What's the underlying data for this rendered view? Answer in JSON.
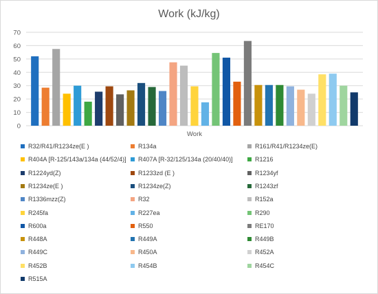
{
  "chart_data": {
    "type": "bar",
    "title": "Work (kJ/kg)",
    "xlabel": "Work",
    "ylabel": "",
    "ylim": [
      0,
      70
    ],
    "yticks": [
      0,
      10,
      20,
      30,
      40,
      50,
      60,
      70
    ],
    "categories": [
      "Work"
    ],
    "legend_position": "bottom",
    "grid": true,
    "series": [
      {
        "name": "R32/R41/R1234ze(E )",
        "value": 52,
        "color": "#1f6fbf"
      },
      {
        "name": "R134a",
        "value": 28.5,
        "color": "#ed7d31"
      },
      {
        "name": "R161/R41/R1234ze(E)",
        "value": 57.5,
        "color": "#a5a5a5"
      },
      {
        "name": "R404A [R-125/143a/134a (44/52/4)]",
        "value": 24,
        "color": "#ffc000"
      },
      {
        "name": "R407A [R-32/125/134a (20/40/40)]",
        "value": 30,
        "color": "#2e9bd6"
      },
      {
        "name": "R1216",
        "value": 18,
        "color": "#3ea843"
      },
      {
        "name": "R1224yd(Z)",
        "value": 25.5,
        "color": "#1d3d6d"
      },
      {
        "name": "R1233zd (E )",
        "value": 29.5,
        "color": "#9e4810"
      },
      {
        "name": "R1234yf",
        "value": 23.5,
        "color": "#616161"
      },
      {
        "name": "R1234ze(E )",
        "value": 26.5,
        "color": "#a37a12"
      },
      {
        "name": "R1234ze(Z)",
        "value": 32,
        "color": "#1a4f7e"
      },
      {
        "name": "R1243zf",
        "value": 29,
        "color": "#27693a"
      },
      {
        "name": "R1336mzz(Z)",
        "value": 26,
        "color": "#4f86c6"
      },
      {
        "name": "R32",
        "value": 47.5,
        "color": "#f4a582"
      },
      {
        "name": "R152a",
        "value": 45,
        "color": "#bdbdbd"
      },
      {
        "name": "R245fa",
        "value": 29.5,
        "color": "#ffd43b"
      },
      {
        "name": "R227ea",
        "value": 17.5,
        "color": "#62b2e6"
      },
      {
        "name": "R290",
        "value": 54.5,
        "color": "#74c476"
      },
      {
        "name": "R600a",
        "value": 51,
        "color": "#1157a6"
      },
      {
        "name": "R550",
        "value": 33,
        "color": "#e2600f"
      },
      {
        "name": "RE170",
        "value": 63.5,
        "color": "#7b7b7b"
      },
      {
        "name": "R448A",
        "value": 30.5,
        "color": "#c7920c"
      },
      {
        "name": "R449A",
        "value": 30.5,
        "color": "#2273b0"
      },
      {
        "name": "R449B",
        "value": 30.5,
        "color": "#2f8a34"
      },
      {
        "name": "R449C",
        "value": 29.5,
        "color": "#8fb2de"
      },
      {
        "name": "R450A",
        "value": 27,
        "color": "#f8b88b"
      },
      {
        "name": "R452A",
        "value": 24,
        "color": "#d0d0d0"
      },
      {
        "name": "R452B",
        "value": 38.5,
        "color": "#ffe066"
      },
      {
        "name": "R454B",
        "value": 39,
        "color": "#8ecaf0"
      },
      {
        "name": "R454C",
        "value": 30,
        "color": "#9fd59f"
      },
      {
        "name": "R515A",
        "value": 25,
        "color": "#123a6b"
      }
    ]
  }
}
